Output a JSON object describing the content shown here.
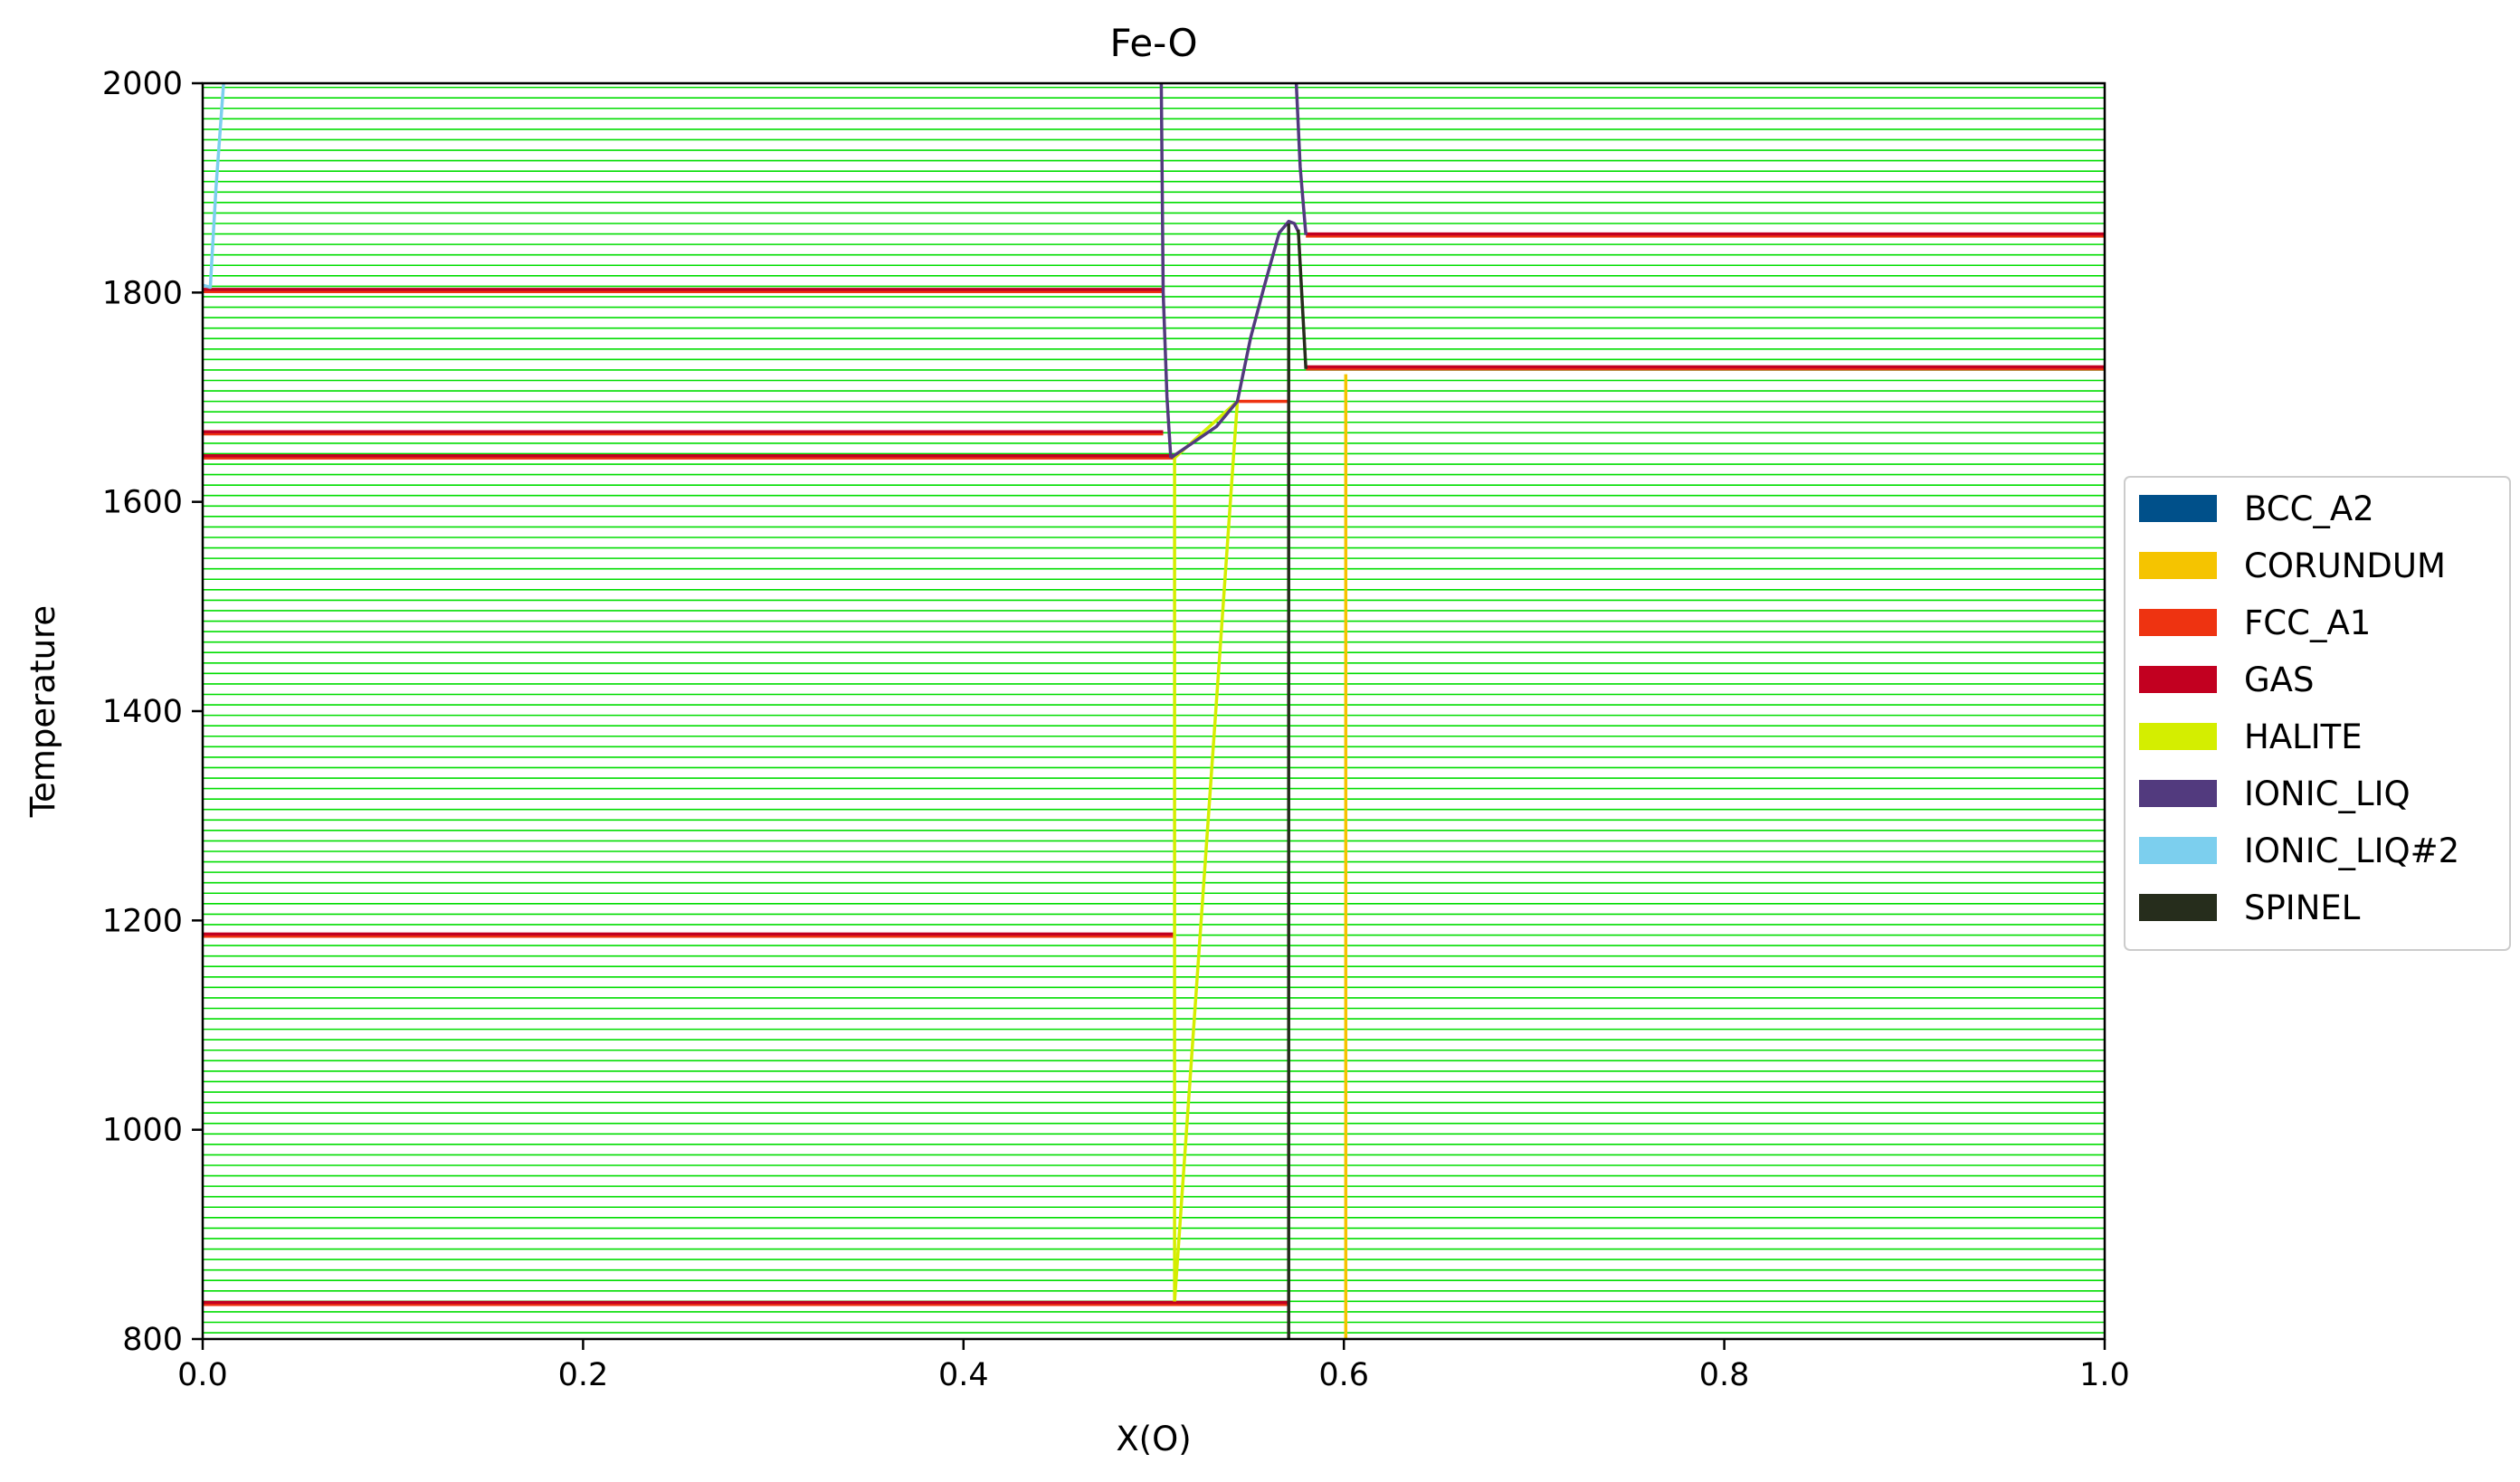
{
  "chart_data": {
    "type": "line",
    "title": "Fe-O",
    "xlabel": "X(O)",
    "ylabel": "Temperature",
    "xlim": [
      0.0,
      1.0
    ],
    "ylim": [
      800,
      2000
    ],
    "xticks": [
      "0.0",
      "0.2",
      "0.4",
      "0.6",
      "0.8",
      "1.0"
    ],
    "yticks": [
      "800",
      "1000",
      "1200",
      "1400",
      "1600",
      "1800",
      "2000"
    ],
    "grid": false,
    "legend_position": "right",
    "tie_lines": {
      "color": "#00dd00",
      "t_start": 806,
      "t_step": 10,
      "t_end": 2000
    },
    "series": [
      {
        "name": "BCC_A2",
        "color": "#00508a",
        "segments": []
      },
      {
        "name": "CORUNDUM",
        "color": "#f5c400",
        "segments": [
          [
            [
              0.601,
              800
            ],
            [
              0.601,
              1722
            ]
          ]
        ]
      },
      {
        "name": "FCC_A1",
        "color": "#ee3311",
        "segments": [
          [
            [
              0.0,
              1801
            ],
            [
              0.505,
              1801
            ]
          ],
          [
            [
              0.0,
              1665
            ],
            [
              0.505,
              1665
            ]
          ],
          [
            [
              0.0,
              1642
            ],
            [
              0.511,
              1642
            ]
          ],
          [
            [
              0.0,
              1185
            ],
            [
              0.511,
              1185
            ]
          ],
          [
            [
              0.0,
              833
            ],
            [
              0.571,
              833
            ]
          ],
          [
            [
              0.544,
              1696
            ],
            [
              0.571,
              1696
            ]
          ],
          [
            [
              0.58,
              1854
            ],
            [
              1.0,
              1854
            ]
          ],
          [
            [
              0.58,
              1727
            ],
            [
              1.0,
              1727
            ]
          ]
        ]
      },
      {
        "name": "GAS",
        "color": "#c20020",
        "segments": [
          [
            [
              0.0,
              1803
            ],
            [
              0.505,
              1803
            ]
          ],
          [
            [
              0.0,
              1667
            ],
            [
              0.505,
              1667
            ]
          ],
          [
            [
              0.0,
              1644
            ],
            [
              0.511,
              1644
            ]
          ],
          [
            [
              0.0,
              1187
            ],
            [
              0.511,
              1187
            ]
          ],
          [
            [
              0.0,
              835
            ],
            [
              0.571,
              835
            ]
          ],
          [
            [
              0.58,
              1856
            ],
            [
              1.0,
              1856
            ]
          ],
          [
            [
              0.58,
              1729
            ],
            [
              1.0,
              1729
            ]
          ]
        ]
      },
      {
        "name": "HALITE",
        "color": "#d4ee00",
        "segments": [
          [
            [
              0.511,
              1642
            ],
            [
              0.511,
              1185
            ],
            [
              0.511,
              836
            ]
          ],
          [
            [
              0.511,
              836
            ],
            [
              0.544,
              1696
            ]
          ],
          [
            [
              0.511,
              1642
            ],
            [
              0.544,
              1696
            ]
          ]
        ]
      },
      {
        "name": "IONIC_LIQ",
        "color": "#523a7e",
        "segments": [
          [
            [
              0.504,
              2000
            ],
            [
              0.505,
              1800
            ],
            [
              0.507,
              1700
            ],
            [
              0.509,
              1642
            ]
          ],
          [
            [
              0.509,
              1642
            ],
            [
              0.533,
              1672
            ],
            [
              0.544,
              1696
            ],
            [
              0.551,
              1757
            ],
            [
              0.558,
              1805
            ],
            [
              0.566,
              1857
            ],
            [
              0.571,
              1868
            ],
            [
              0.574,
              1866
            ],
            [
              0.576,
              1858
            ]
          ],
          [
            [
              0.575,
              2000
            ],
            [
              0.577,
              1920
            ],
            [
              0.58,
              1855
            ]
          ]
        ]
      },
      {
        "name": "IONIC_LIQ#2",
        "color": "#7ccfee",
        "segments": [
          [
            [
              0.011,
              2000
            ],
            [
              0.007,
              1900
            ],
            [
              0.004,
              1805
            ],
            [
              0.0,
              1807
            ]
          ]
        ]
      },
      {
        "name": "SPINEL",
        "color": "#262d1c",
        "segments": [
          [
            [
              0.571,
              800
            ],
            [
              0.571,
              1866
            ]
          ],
          [
            [
              0.576,
              1860
            ],
            [
              0.58,
              1727
            ]
          ]
        ]
      }
    ]
  }
}
